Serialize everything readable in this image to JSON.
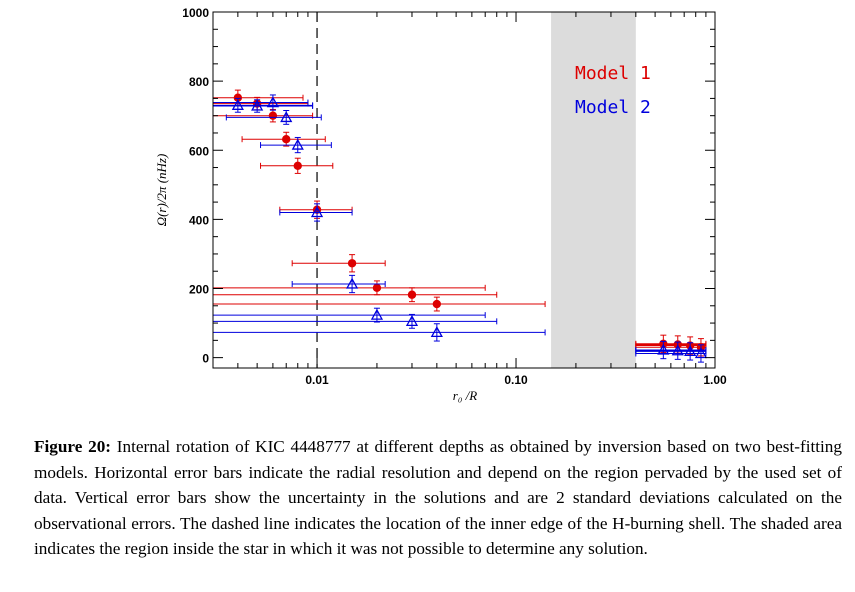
{
  "chart_data": {
    "type": "scatter",
    "xscale": "log",
    "xlim": [
      0.003,
      1.0
    ],
    "ylim": [
      -30,
      1000
    ],
    "xticks": [
      0.01,
      0.1,
      1.0
    ],
    "xtick_labels": [
      "0.01",
      "0.10",
      "1.00"
    ],
    "yticks": [
      0,
      200,
      400,
      600,
      800,
      1000
    ],
    "ytick_labels": [
      "0",
      "200",
      "400",
      "600",
      "800",
      "1000"
    ],
    "xlabel": "r₀ /R",
    "ylabel": "Ω(r)/2π (nHz)",
    "grid": false,
    "legend_position": "top-right inside",
    "vline": {
      "x": 0.01,
      "style": "dashed"
    },
    "shaded_region": {
      "x": [
        0.15,
        0.4
      ],
      "color": "#dcdcdc"
    },
    "series": [
      {
        "name": "Model 1",
        "color": "#dd0000",
        "marker": "circle",
        "points": [
          {
            "x": 0.004,
            "y": 752,
            "xlo": 0.003,
            "xhi": 0.0085,
            "yerr": 22
          },
          {
            "x": 0.005,
            "y": 735,
            "xlo": 0.003,
            "xhi": 0.009,
            "yerr": 18
          },
          {
            "x": 0.006,
            "y": 700,
            "xlo": 0.003,
            "xhi": 0.0095,
            "yerr": 18
          },
          {
            "x": 0.007,
            "y": 632,
            "xlo": 0.0042,
            "xhi": 0.011,
            "yerr": 20
          },
          {
            "x": 0.008,
            "y": 555,
            "xlo": 0.0052,
            "xhi": 0.012,
            "yerr": 22
          },
          {
            "x": 0.01,
            "y": 428,
            "xlo": 0.0065,
            "xhi": 0.015,
            "yerr": 25
          },
          {
            "x": 0.015,
            "y": 273,
            "xlo": 0.0075,
            "xhi": 0.022,
            "yerr": 25
          },
          {
            "x": 0.02,
            "y": 202,
            "xlo": 0.003,
            "xhi": 0.07,
            "yerr": 20
          },
          {
            "x": 0.03,
            "y": 182,
            "xlo": 0.003,
            "xhi": 0.08,
            "yerr": 20
          },
          {
            "x": 0.04,
            "y": 155,
            "xlo": 0.003,
            "xhi": 0.14,
            "yerr": 20
          },
          {
            "x": 0.55,
            "y": 40,
            "xlo": 0.4,
            "xhi": 0.9,
            "yerr": 25
          },
          {
            "x": 0.65,
            "y": 38,
            "xlo": 0.4,
            "xhi": 0.9,
            "yerr": 25
          },
          {
            "x": 0.75,
            "y": 35,
            "xlo": 0.4,
            "xhi": 0.9,
            "yerr": 25
          },
          {
            "x": 0.85,
            "y": 30,
            "xlo": 0.4,
            "xhi": 0.9,
            "yerr": 25
          }
        ]
      },
      {
        "name": "Model 2",
        "color": "#0000dd",
        "marker": "triangle",
        "points": [
          {
            "x": 0.004,
            "y": 730,
            "xlo": 0.003,
            "xhi": 0.0095,
            "yerr": 20
          },
          {
            "x": 0.005,
            "y": 728,
            "xlo": 0.003,
            "xhi": 0.0095,
            "yerr": 18
          },
          {
            "x": 0.006,
            "y": 738,
            "xlo": 0.003,
            "xhi": 0.009,
            "yerr": 22
          },
          {
            "x": 0.007,
            "y": 695,
            "xlo": 0.0035,
            "xhi": 0.0105,
            "yerr": 20
          },
          {
            "x": 0.008,
            "y": 615,
            "xlo": 0.0052,
            "xhi": 0.0118,
            "yerr": 22
          },
          {
            "x": 0.01,
            "y": 420,
            "xlo": 0.0065,
            "xhi": 0.015,
            "yerr": 25
          },
          {
            "x": 0.015,
            "y": 213,
            "xlo": 0.0075,
            "xhi": 0.022,
            "yerr": 25
          },
          {
            "x": 0.02,
            "y": 123,
            "xlo": 0.003,
            "xhi": 0.07,
            "yerr": 20
          },
          {
            "x": 0.03,
            "y": 105,
            "xlo": 0.003,
            "xhi": 0.08,
            "yerr": 20
          },
          {
            "x": 0.04,
            "y": 73,
            "xlo": 0.003,
            "xhi": 0.14,
            "yerr": 25
          },
          {
            "x": 0.55,
            "y": 22,
            "xlo": 0.4,
            "xhi": 0.9,
            "yerr": 25
          },
          {
            "x": 0.65,
            "y": 20,
            "xlo": 0.4,
            "xhi": 0.9,
            "yerr": 25
          },
          {
            "x": 0.75,
            "y": 18,
            "xlo": 0.4,
            "xhi": 0.9,
            "yerr": 25
          },
          {
            "x": 0.85,
            "y": 12,
            "xlo": 0.4,
            "xhi": 0.9,
            "yerr": 25
          }
        ]
      }
    ]
  },
  "caption": {
    "label": "Figure 20:",
    "text": " Internal rotation of KIC 4448777 at different depths as obtained by inversion based on two best-fitting models. Horizontal error bars indicate the radial resolution and depend on the region pervaded by the used set of data. Vertical error bars show the uncertainty in the solutions and are 2 standard deviations calculated on the observational errors. The dashed line indicates the location of the inner edge of the H-burning shell. The shaded area indicates the region inside the star in which it was not possible to determine any solution."
  }
}
